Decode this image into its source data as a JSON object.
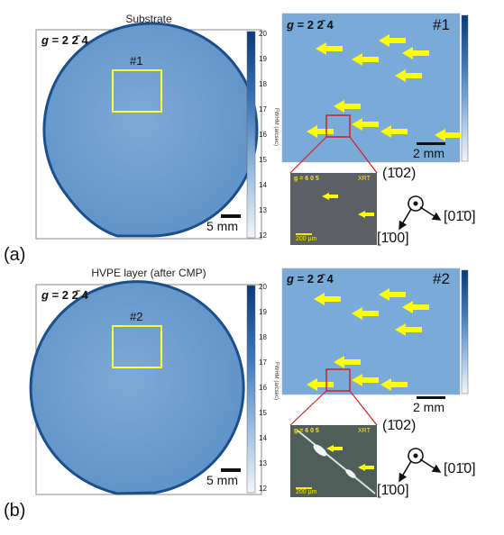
{
  "figure": {
    "panels": [
      {
        "label": "(a)",
        "wafer_title": "Substrate",
        "g_vector": "g = 2 2̄ 4",
        "g_sym": "g",
        "g_val": "= 2 2̄ 4",
        "region_label": "#1",
        "wafer_scalebar": "5 mm",
        "colorbar_ticks": [
          "20",
          "19",
          "18",
          "17",
          "16",
          "15",
          "14",
          "13",
          "12"
        ],
        "colorbar_unit": "FWHM (arcsec)",
        "zoom_g_sym": "g",
        "zoom_g_val": "= 2 2̄ 4",
        "zoom_label": "#1",
        "zoom_scalebar": "2 mm",
        "xrt_g": "g = 6 0 5",
        "xrt_tag": "XRT",
        "xrt_scalebar": "200 μm",
        "dir_out": "(1̄02)",
        "dir_right": "[01̄0]",
        "dir_down": "[1̄00]"
      },
      {
        "label": "(b)",
        "wafer_title": "HVPE layer (after CMP)",
        "g_vector": "g = 2 2̄ 4",
        "g_sym": "g",
        "g_val": "= 2 2̄ 4",
        "region_label": "#2",
        "wafer_scalebar": "5 mm",
        "colorbar_ticks": [
          "20",
          "19",
          "18",
          "17",
          "16",
          "15",
          "14",
          "13",
          "12"
        ],
        "colorbar_unit": "FWHM (arcsec)",
        "zoom_g_sym": "g",
        "zoom_g_val": "= 2 2̄ 4",
        "zoom_label": "#2",
        "zoom_scalebar": "2 mm",
        "xrt_g": "g = 6 0 5",
        "xrt_tag": "XRT",
        "xrt_scalebar": "200 μm",
        "dir_out": "(1̄02)",
        "dir_right": "[01̄0]",
        "dir_down": "[1̄00]"
      }
    ],
    "colors": {
      "wafer_fill": "#6f9fd0",
      "wafer_edge": "#1b4f8c",
      "zoom_fill": "#78aad8",
      "highlight_box": "#ffff33",
      "arrow": "#ffff00",
      "zoom_link": "#d22020",
      "colorbar_top": "#0b3a78",
      "colorbar_bottom": "#f2f6fb"
    }
  }
}
